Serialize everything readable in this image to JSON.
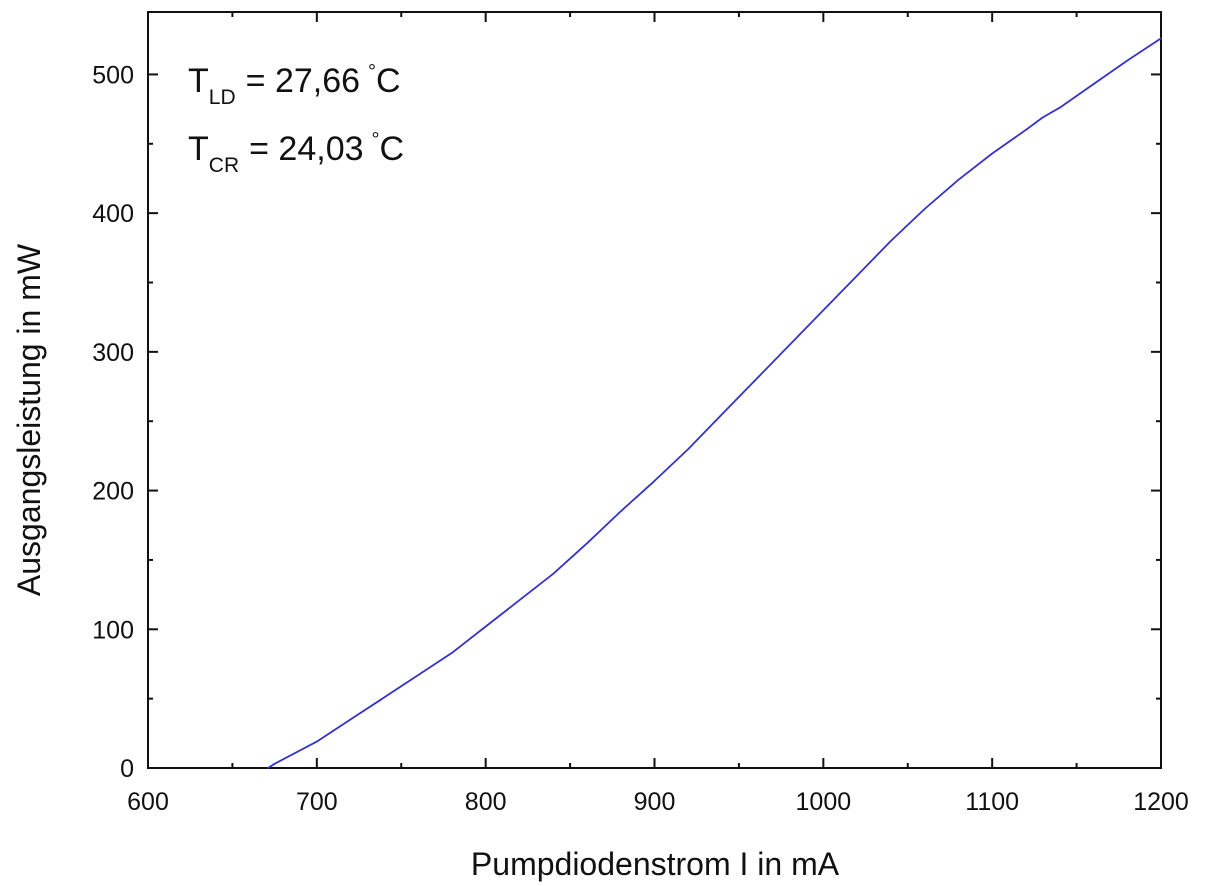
{
  "chart_data": {
    "type": "line",
    "xlabel": "Pumpdiodenstrom I in mA",
    "ylabel": "Ausgangsleistung in mW",
    "xlim": [
      600,
      1200
    ],
    "ylim": [
      0,
      545
    ],
    "x_ticks": [
      600,
      700,
      800,
      900,
      1000,
      1100,
      1200
    ],
    "y_ticks": [
      0,
      100,
      200,
      300,
      400,
      500
    ],
    "grid": false,
    "legend": "none",
    "annotations": [
      {
        "symbol": "T",
        "subscript": "LD",
        "value": "= 27,66",
        "degree": "°",
        "unit": "C"
      },
      {
        "symbol": "T",
        "subscript": "CR",
        "value": "= 24,03",
        "degree": "°",
        "unit": "C"
      }
    ],
    "series": [
      {
        "color": "#3333cc",
        "x": [
          671,
          675,
          700,
          720,
          740,
          760,
          780,
          800,
          820,
          840,
          860,
          880,
          900,
          920,
          940,
          960,
          980,
          1000,
          1020,
          1040,
          1060,
          1080,
          1100,
          1120,
          1130,
          1140,
          1160,
          1180,
          1200
        ],
        "y": [
          0,
          3,
          19,
          35,
          51,
          67,
          83,
          102,
          121,
          140,
          162,
          185,
          207,
          230,
          255,
          280,
          305,
          330,
          355,
          380,
          403,
          424,
          443,
          460,
          469,
          476,
          493,
          510,
          526
        ]
      }
    ]
  }
}
